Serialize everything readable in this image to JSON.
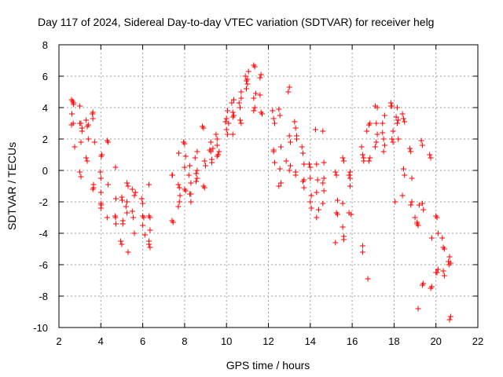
{
  "chart_data": {
    "type": "scatter",
    "title": "Day 117 of 2024, Sidereal Day-to-day VTEC variation (SDTVAR) for receiver helg",
    "xlabel": "GPS time / hours",
    "ylabel": "SDTVAR / TECUs",
    "xlim": [
      2,
      22
    ],
    "ylim": [
      -10,
      8
    ],
    "xticks": [
      2,
      4,
      6,
      8,
      10,
      12,
      14,
      16,
      18,
      20,
      22
    ],
    "yticks": [
      -10,
      -8,
      -6,
      -4,
      -2,
      0,
      2,
      4,
      6,
      8
    ],
    "grid": true,
    "marker": "+",
    "color": "#ff0000",
    "series": [
      {
        "name": "SDTVAR",
        "x": [
          2.6,
          2.65,
          2.7,
          2.62,
          2.68,
          2.75,
          2.6,
          2.7,
          3.0,
          3.05,
          3.1,
          3.0,
          3.05,
          3.1,
          3.0,
          3.05,
          3.3,
          3.35,
          3.4,
          3.3,
          3.35,
          3.4,
          3.6,
          3.62,
          3.65,
          3.62,
          3.65,
          3.7,
          3.62,
          3.98,
          4.0,
          4.02,
          4.0,
          4.05,
          4.0,
          4.0,
          4.02,
          4.3,
          4.35,
          4.3,
          4.35,
          4.7,
          4.68,
          4.72,
          4.7,
          4.72,
          4.95,
          5.0,
          5.05,
          5.0,
          5.02,
          5.05,
          5.2,
          5.25,
          5.3,
          5.25,
          5.3,
          5.25,
          5.5,
          5.6,
          5.55,
          5.6,
          5.5,
          5.65,
          5.95,
          6.0,
          6.05,
          6.0,
          6.1,
          6.0,
          6.3,
          6.3,
          6.35,
          6.3,
          6.35,
          6.3,
          6.35,
          7.4,
          7.45,
          7.4,
          7.42,
          7.7,
          7.72,
          7.75,
          7.7,
          7.75,
          7.78,
          7.95,
          8.0,
          8.05,
          8.0,
          8.05,
          8.0,
          8.2,
          8.25,
          8.3,
          8.25,
          8.3,
          8.3,
          8.5,
          8.55,
          8.6,
          8.55,
          8.6,
          8.6,
          8.85,
          8.9,
          8.95,
          8.9,
          8.95,
          9.0,
          9.2,
          9.25,
          9.3,
          9.3,
          9.35,
          9.25,
          9.5,
          9.55,
          9.6,
          9.55,
          9.55,
          9.65,
          9.95,
          10.0,
          10.05,
          10.0,
          10.05,
          10.1,
          10.25,
          10.3,
          10.35,
          10.3,
          10.3,
          10.35,
          10.6,
          10.65,
          10.7,
          10.65,
          10.7,
          10.7,
          10.9,
          10.95,
          11.0,
          10.95,
          11.0,
          11.05,
          11.3,
          11.35,
          11.3,
          11.35,
          11.3,
          11.4,
          11.6,
          11.65,
          11.6,
          11.65,
          11.7,
          12.2,
          12.25,
          12.3,
          12.25,
          12.3,
          12.25,
          12.5,
          12.55,
          12.55,
          12.6,
          12.5,
          12.6,
          12.95,
          13.0,
          13.0,
          13.05,
          13.0,
          13.05,
          12.85,
          13.25,
          13.3,
          13.35,
          13.3,
          13.3,
          13.35,
          13.6,
          13.65,
          13.7,
          13.65,
          13.7,
          13.7,
          13.95,
          14.0,
          14.05,
          14.0,
          14.05,
          14.0,
          14.25,
          14.3,
          14.35,
          14.3,
          14.3,
          14.4,
          14.6,
          14.65,
          14.6,
          14.65,
          14.6,
          14.65,
          15.2,
          15.25,
          15.3,
          15.25,
          15.3,
          15.2,
          15.55,
          15.6,
          15.55,
          15.6,
          15.6,
          15.55,
          15.85,
          15.9,
          15.9,
          15.85,
          15.95,
          15.9,
          16.45,
          16.5,
          16.55,
          16.5,
          16.5,
          16.55,
          16.7,
          16.8,
          16.85,
          16.8,
          16.85,
          16.75,
          17.1,
          17.15,
          17.2,
          17.15,
          17.2,
          17.1,
          17.45,
          17.5,
          17.55,
          17.5,
          17.55,
          17.45,
          17.85,
          17.9,
          17.95,
          17.9,
          17.95,
          17.85,
          18.1,
          18.15,
          18.2,
          18.15,
          18.2,
          18.05,
          18.4,
          18.45,
          18.5,
          18.45,
          18.5,
          18.4,
          18.75,
          18.8,
          18.85,
          18.8,
          18.85,
          19.0,
          19.1,
          19.15,
          19.2,
          19.1,
          19.15,
          19.3,
          19.35,
          19.4,
          19.35,
          19.4,
          19.35,
          19.7,
          19.75,
          19.8,
          19.75,
          19.8,
          20.0,
          20.05,
          20.1,
          20.05,
          20.1,
          20.0,
          20.3,
          20.35,
          20.4,
          20.35,
          20.4,
          20.6,
          20.65,
          20.7,
          20.65,
          20.7,
          20.62
        ],
        "y": [
          4.5,
          4.4,
          4.2,
          3.6,
          3.0,
          1.5,
          2.9,
          4.3,
          4.1,
          3.0,
          2.5,
          -0.1,
          -0.4,
          2.7,
          3.0,
          1.8,
          3.2,
          2.8,
          2.0,
          0.8,
          0.6,
          2.9,
          3.6,
          3.3,
          -0.9,
          -1.2,
          -1.1,
          1.8,
          3.7,
          -0.1,
          -0.5,
          -2.2,
          -2.4,
          1.0,
          -2.1,
          -1.4,
          0.9,
          1.9,
          -0.9,
          -3.0,
          1.8,
          0.2,
          -2.9,
          -3.4,
          -3.0,
          -1.8,
          -4.5,
          -4.7,
          -3.4,
          -1.7,
          -1.9,
          -3.2,
          -2.3,
          -2.7,
          -5.2,
          -0.8,
          -1.0,
          -2.0,
          -1.2,
          -1.6,
          -3.0,
          -4.0,
          -2.6,
          -1.4,
          -1.8,
          -2.1,
          -3.0,
          -2.9,
          -4.1,
          -3.5,
          -0.9,
          -2.9,
          -3.8,
          -4.5,
          -4.9,
          -4.7,
          -3.0,
          -0.3,
          -3.3,
          -3.2,
          -0.3,
          -0.9,
          1.1,
          -2.0,
          -2.3,
          -1.1,
          -1.6,
          1.8,
          1.7,
          0.9,
          -1.2,
          -1.3,
          0.2,
          -0.3,
          0.3,
          -0.8,
          -1.5,
          -2.0,
          -1.5,
          0.8,
          -0.2,
          0.0,
          -0.7,
          -0.5,
          1.2,
          2.8,
          2.7,
          0.6,
          -1.0,
          -1.1,
          0.3,
          1.3,
          1.2,
          0.5,
          0.7,
          1.4,
          1.8,
          2.3,
          2.0,
          1.0,
          0.9,
          1.6,
          1.2,
          3.1,
          2.6,
          2.3,
          3.3,
          3.8,
          3.0,
          4.3,
          3.7,
          3.5,
          3.4,
          2.3,
          4.5,
          4.3,
          3.2,
          3.0,
          4.0,
          5.0,
          4.6,
          6.0,
          5.7,
          5.5,
          5.2,
          5.8,
          6.3,
          6.7,
          6.6,
          4.6,
          4.0,
          3.8,
          4.9,
          5.9,
          6.1,
          4.8,
          3.7,
          3.6,
          3.8,
          3.3,
          3.0,
          1.2,
          0.5,
          1.3,
          3.9,
          3.5,
          0.1,
          -0.8,
          -1.0,
          1.5,
          5.0,
          5.3,
          2.2,
          0.3,
          0.0,
          1.8,
          0.6,
          3.1,
          2.7,
          2.2,
          -0.1,
          -0.3,
          2.0,
          1.5,
          1.1,
          0.4,
          -0.7,
          -1.1,
          -0.6,
          0.4,
          0.2,
          -1.6,
          -2.0,
          -2.4,
          -0.5,
          2.6,
          0.4,
          -0.6,
          -1.4,
          -3.0,
          -2.5,
          2.5,
          -0.5,
          -0.8,
          -1.3,
          -2.1,
          0.5,
          -0.1,
          -0.3,
          -2.8,
          -2.7,
          -1.9,
          -4.6,
          0.8,
          0.6,
          -3.6,
          -4.2,
          -4.4,
          -2.1,
          -0.3,
          -0.5,
          -1.0,
          -2.7,
          -2.8,
          -0.1,
          1.5,
          1.0,
          0.8,
          -4.8,
          -5.2,
          0.6,
          2.5,
          2.9,
          0.8,
          0.6,
          3.0,
          -6.9,
          4.1,
          3.0,
          2.3,
          1.8,
          4.0,
          1.5,
          2.4,
          2.0,
          1.6,
          1.2,
          3.5,
          3.0,
          4.3,
          4.1,
          2.5,
          2.0,
          1.8,
          4.1,
          3.4,
          3.0,
          2.0,
          4.0,
          3.2,
          -2.0,
          3.6,
          3.3,
          3.1,
          0.1,
          -0.3,
          -1.6,
          1.4,
          1.2,
          -2.0,
          -2.2,
          -0.5,
          -3.0,
          -3.3,
          -3.5,
          -2.2,
          -3.4,
          -8.8,
          1.9,
          1.6,
          -2.5,
          -7.3,
          -7.2,
          -2.1,
          1.0,
          0.8,
          -4.3,
          -7.5,
          -7.4,
          -2.9,
          -3.0,
          -4.0,
          -6.5,
          -6.3,
          -6.5,
          -4.3,
          -4.9,
          -6.7,
          -6.4,
          -5.0,
          -5.8,
          -9.5,
          -9.3,
          -5.5,
          -5.9,
          -6.0
        ]
      }
    ]
  }
}
